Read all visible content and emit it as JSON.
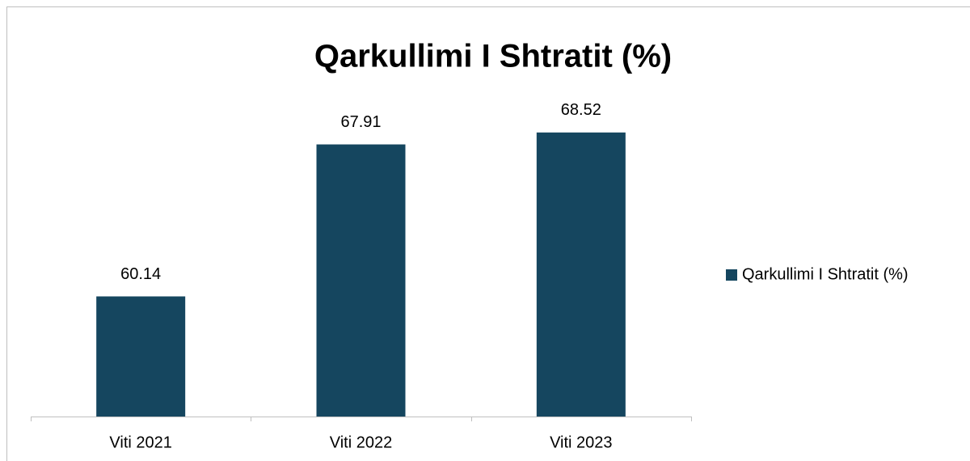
{
  "chart_data": {
    "type": "bar",
    "title": "Qarkullimi I Shtratit (%)",
    "categories": [
      "Viti 2021",
      "Viti 2022",
      "Viti 2023"
    ],
    "series": [
      {
        "name": "Qarkullimi I Shtratit (%)",
        "color": "#15465f",
        "values": [
          60.14,
          67.91,
          68.52
        ]
      }
    ],
    "ylim": [
      54,
      70
    ],
    "legend": "right"
  }
}
